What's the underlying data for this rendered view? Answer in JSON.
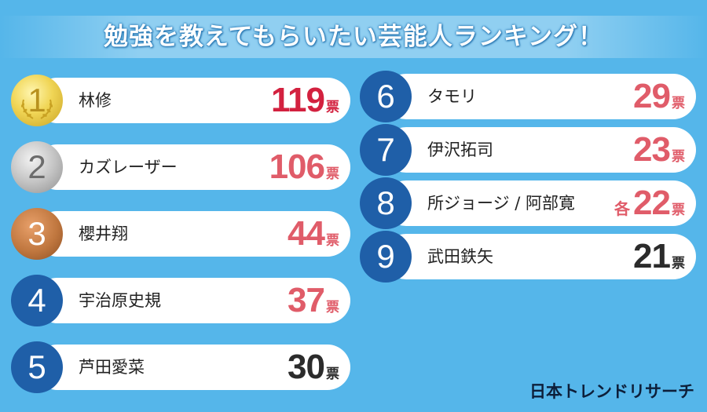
{
  "title": "勉強を教えてもらいたい芸能人ランキング！",
  "logo": "日本トレンドリサーチ",
  "chart_data": {
    "type": "table",
    "unit": "票",
    "rows": [
      {
        "rank": "1",
        "name": "林修",
        "prefix": "",
        "votes": 119,
        "num_color": "#d3213f"
      },
      {
        "rank": "2",
        "name": "カズレーザー",
        "prefix": "",
        "votes": 106,
        "num_color": "#e05c69"
      },
      {
        "rank": "3",
        "name": "櫻井翔",
        "prefix": "",
        "votes": 44,
        "num_color": "#e05c69"
      },
      {
        "rank": "4",
        "name": "宇治原史規",
        "prefix": "",
        "votes": 37,
        "num_color": "#e05c69"
      },
      {
        "rank": "5",
        "name": "芦田愛菜",
        "prefix": "",
        "votes": 30,
        "num_color": "#2b2b2b"
      },
      {
        "rank": "6",
        "name": "タモリ",
        "prefix": "",
        "votes": 29,
        "num_color": "#e05c69"
      },
      {
        "rank": "7",
        "name": "伊沢拓司",
        "prefix": "",
        "votes": 23,
        "num_color": "#e05c69"
      },
      {
        "rank": "8",
        "name": "所ジョージ / 阿部寛",
        "prefix": "各",
        "votes": 22,
        "num_color": "#e05c69"
      },
      {
        "rank": "9",
        "name": "武田鉄矢",
        "prefix": "",
        "votes": 21,
        "num_color": "#2b2b2b"
      }
    ]
  }
}
